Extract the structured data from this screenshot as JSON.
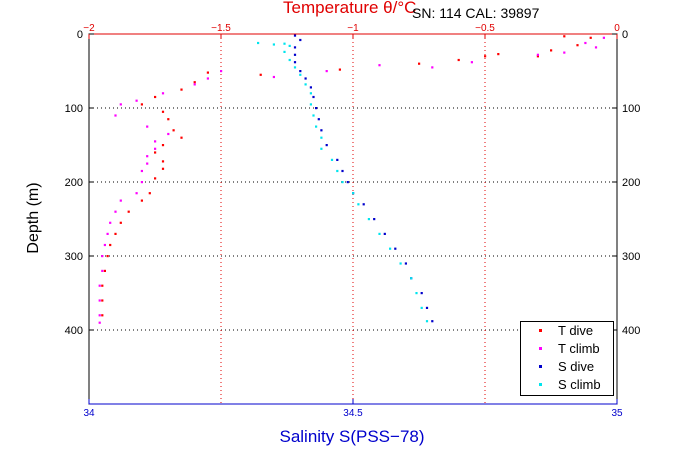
{
  "header": {
    "title": "Temperature θ/°C",
    "serial": "SN: 114  CAL: 39897"
  },
  "axes": {
    "ylabel": "Depth (m)",
    "xlabel": "Salinity S(PSS−78)"
  },
  "legend": [
    {
      "label": "T dive",
      "color": "#ff0000"
    },
    {
      "label": "T climb",
      "color": "#ff00ff"
    },
    {
      "label": "S dive",
      "color": "#0000cc"
    },
    {
      "label": "S climb",
      "color": "#00e5ee"
    }
  ],
  "chart_data": {
    "type": "scatter",
    "title": "Temperature θ/°C",
    "ylabel": "Depth (m)",
    "xlabel": "Salinity S(PSS−78)",
    "y": {
      "lim": [
        0,
        500
      ],
      "reversed": true,
      "ticks": [
        0,
        100,
        200,
        300,
        400
      ],
      "tick_labels": [
        "0",
        "100",
        "200",
        "300",
        "400"
      ]
    },
    "x_salinity": {
      "lim": [
        34,
        35
      ],
      "ticks": [
        34,
        34.5,
        35
      ],
      "tick_labels": [
        "34",
        "34.5",
        "35"
      ]
    },
    "x_temperature": {
      "lim": [
        -2,
        0
      ],
      "ticks": [
        -2,
        -1.5,
        -1,
        -0.5,
        0
      ],
      "tick_labels": [
        "−2",
        "−1.5",
        "−1",
        "−0.5",
        "0"
      ]
    },
    "grid": true,
    "legend_position": "bottom-right",
    "series": [
      {
        "name": "T dive",
        "axis": "temperature",
        "color": "#ff0000",
        "points": [
          [
            -0.2,
            3
          ],
          [
            -0.1,
            5
          ],
          [
            -0.15,
            15
          ],
          [
            -0.25,
            22
          ],
          [
            -0.3,
            30
          ],
          [
            -0.45,
            27
          ],
          [
            -0.5,
            30
          ],
          [
            -0.6,
            35
          ],
          [
            -0.75,
            40
          ],
          [
            -1.05,
            48
          ],
          [
            -1.35,
            55
          ],
          [
            -1.55,
            52
          ],
          [
            -1.6,
            65
          ],
          [
            -1.65,
            75
          ],
          [
            -1.75,
            85
          ],
          [
            -1.8,
            95
          ],
          [
            -1.72,
            105
          ],
          [
            -1.7,
            115
          ],
          [
            -1.68,
            130
          ],
          [
            -1.65,
            140
          ],
          [
            -1.72,
            150
          ],
          [
            -1.75,
            160
          ],
          [
            -1.72,
            172
          ],
          [
            -1.72,
            182
          ],
          [
            -1.75,
            195
          ],
          [
            -1.77,
            215
          ],
          [
            -1.8,
            225
          ],
          [
            -1.85,
            240
          ],
          [
            -1.88,
            255
          ],
          [
            -1.9,
            270
          ],
          [
            -1.92,
            285
          ],
          [
            -1.93,
            300
          ],
          [
            -1.94,
            320
          ],
          [
            -1.95,
            340
          ],
          [
            -1.95,
            360
          ],
          [
            -1.95,
            380
          ]
        ]
      },
      {
        "name": "T climb",
        "axis": "temperature",
        "color": "#ff00ff",
        "points": [
          [
            -0.05,
            5
          ],
          [
            -0.12,
            12
          ],
          [
            -0.08,
            18
          ],
          [
            -0.3,
            28
          ],
          [
            -0.2,
            25
          ],
          [
            -0.55,
            38
          ],
          [
            -0.7,
            45
          ],
          [
            -0.9,
            42
          ],
          [
            -1.1,
            50
          ],
          [
            -1.3,
            58
          ],
          [
            -1.5,
            50
          ],
          [
            -1.55,
            60
          ],
          [
            -1.6,
            68
          ],
          [
            -1.72,
            80
          ],
          [
            -1.82,
            90
          ],
          [
            -1.88,
            95
          ],
          [
            -1.9,
            110
          ],
          [
            -1.78,
            125
          ],
          [
            -1.7,
            135
          ],
          [
            -1.75,
            145
          ],
          [
            -1.75,
            155
          ],
          [
            -1.78,
            165
          ],
          [
            -1.78,
            175
          ],
          [
            -1.8,
            185
          ],
          [
            -1.8,
            200
          ],
          [
            -1.82,
            215
          ],
          [
            -1.88,
            225
          ],
          [
            -1.9,
            240
          ],
          [
            -1.92,
            255
          ],
          [
            -1.93,
            270
          ],
          [
            -1.94,
            285
          ],
          [
            -1.95,
            300
          ],
          [
            -1.95,
            320
          ],
          [
            -1.96,
            340
          ],
          [
            -1.96,
            360
          ],
          [
            -1.96,
            380
          ],
          [
            -1.96,
            390
          ]
        ]
      },
      {
        "name": "S dive",
        "axis": "salinity",
        "color": "#0000cc",
        "points": [
          [
            34.39,
            2
          ],
          [
            34.4,
            8
          ],
          [
            34.39,
            18
          ],
          [
            34.39,
            28
          ],
          [
            34.39,
            38
          ],
          [
            34.4,
            50
          ],
          [
            34.41,
            60
          ],
          [
            34.42,
            72
          ],
          [
            34.425,
            85
          ],
          [
            34.43,
            100
          ],
          [
            34.435,
            115
          ],
          [
            34.44,
            130
          ],
          [
            34.45,
            150
          ],
          [
            34.47,
            170
          ],
          [
            34.48,
            185
          ],
          [
            34.49,
            200
          ],
          [
            34.5,
            215
          ],
          [
            34.52,
            230
          ],
          [
            34.54,
            250
          ],
          [
            34.56,
            270
          ],
          [
            34.58,
            290
          ],
          [
            34.6,
            310
          ],
          [
            34.61,
            330
          ],
          [
            34.63,
            350
          ],
          [
            34.64,
            370
          ],
          [
            34.65,
            388
          ]
        ]
      },
      {
        "name": "S climb",
        "axis": "salinity",
        "color": "#00e5ee",
        "points": [
          [
            34.32,
            12
          ],
          [
            34.35,
            14
          ],
          [
            34.37,
            13
          ],
          [
            34.38,
            16
          ],
          [
            34.37,
            24
          ],
          [
            34.38,
            35
          ],
          [
            34.39,
            45
          ],
          [
            34.4,
            55
          ],
          [
            34.41,
            68
          ],
          [
            34.42,
            80
          ],
          [
            34.42,
            95
          ],
          [
            34.425,
            110
          ],
          [
            34.43,
            125
          ],
          [
            34.44,
            140
          ],
          [
            34.44,
            155
          ],
          [
            34.46,
            170
          ],
          [
            34.47,
            185
          ],
          [
            34.48,
            200
          ],
          [
            34.5,
            215
          ],
          [
            34.51,
            230
          ],
          [
            34.53,
            250
          ],
          [
            34.55,
            270
          ],
          [
            34.57,
            290
          ],
          [
            34.59,
            310
          ],
          [
            34.61,
            330
          ],
          [
            34.62,
            350
          ],
          [
            34.63,
            370
          ],
          [
            34.64,
            388
          ]
        ]
      }
    ]
  }
}
